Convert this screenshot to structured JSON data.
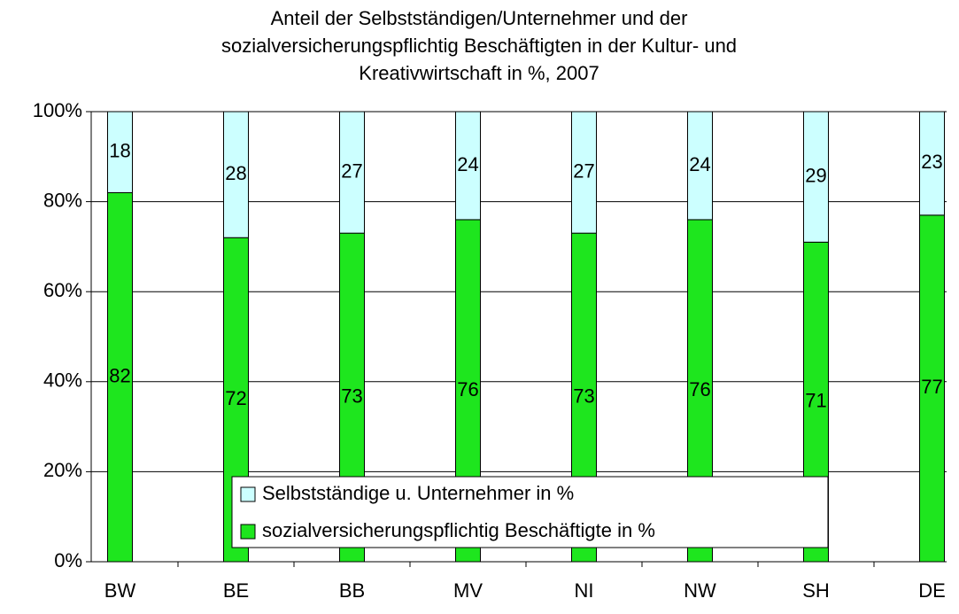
{
  "chart_data": {
    "type": "stacked_bar",
    "title": "Anteil der Selbstständigen/Unternehmer und der sozialversicherungspflichtig Beschäftigten in der Kultur- und Kreativwirtschaft in %, 2007",
    "title_lines": [
      "Anteil der Selbstständigen/Unternehmer und der",
      "sozialversicherungspflichtig Beschäftigten in der Kultur- und",
      "Kreativwirtschaft in %, 2007"
    ],
    "categories": [
      "BW",
      "BE",
      "BB",
      "MV",
      "NI",
      "NW",
      "SH",
      "DE"
    ],
    "series": [
      {
        "name": "sozialversicherungspflichtig Beschäftigte in %",
        "color": "#1ee61e",
        "values": [
          82,
          72,
          73,
          76,
          73,
          76,
          71,
          77
        ]
      },
      {
        "name": "Selbstständige u. Unternehmer in %",
        "color": "#ccffff",
        "values": [
          18,
          28,
          27,
          24,
          27,
          24,
          29,
          23
        ]
      }
    ],
    "ylim": [
      0,
      100
    ],
    "yticks": [
      {
        "value": 0,
        "label": "0%"
      },
      {
        "value": 20,
        "label": "20%"
      },
      {
        "value": 40,
        "label": "40%"
      },
      {
        "value": 60,
        "label": "60%"
      },
      {
        "value": 80,
        "label": "80%"
      },
      {
        "value": 100,
        "label": "100%"
      }
    ],
    "grid": true
  }
}
